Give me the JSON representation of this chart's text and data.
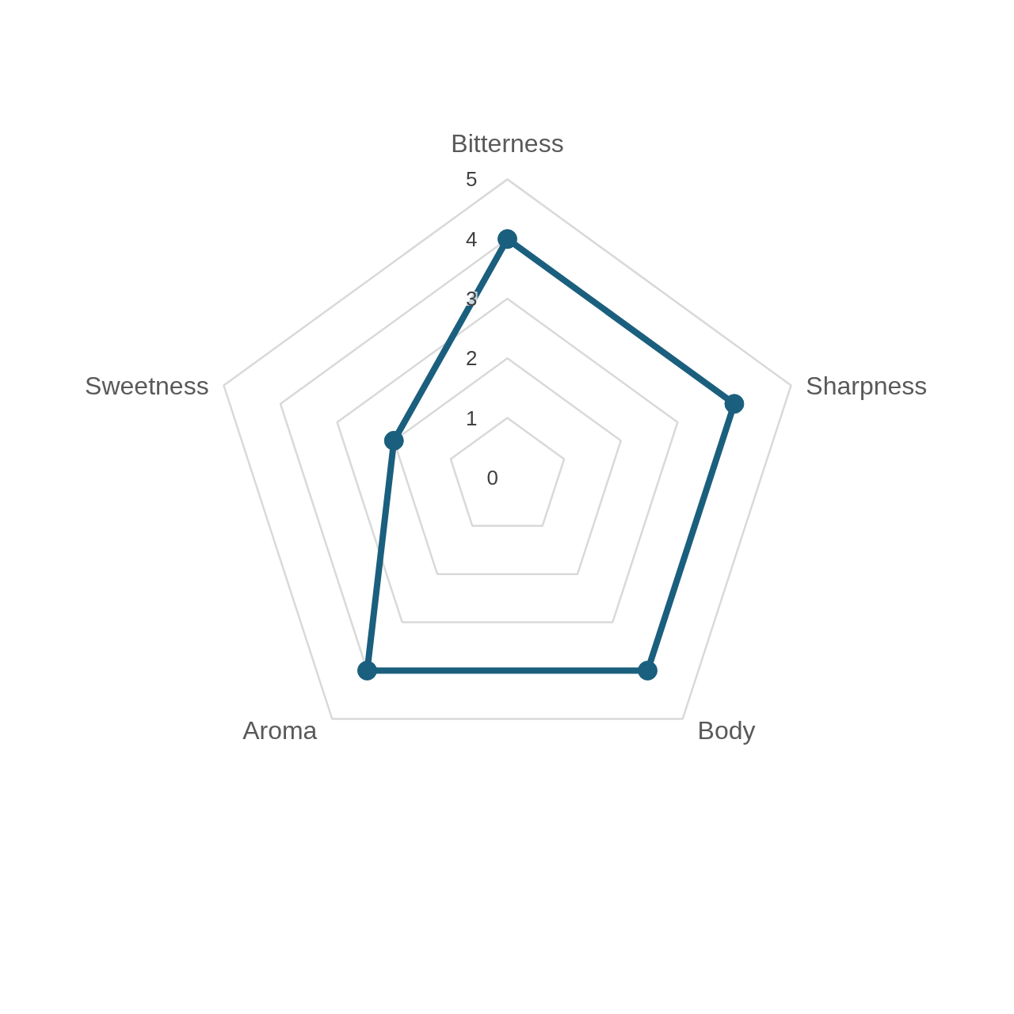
{
  "chart_data": {
    "type": "radar",
    "categories": [
      "Bitterness",
      "Sharpness",
      "Body",
      "Aroma",
      "Sweetness"
    ],
    "series": [
      {
        "color": "#1b5f7e",
        "values": [
          4,
          4,
          4,
          4,
          2
        ]
      }
    ],
    "ylim": [
      0,
      5
    ],
    "yticks": [
      0,
      1,
      2,
      3,
      4,
      5
    ],
    "grid": true,
    "marker": "circle",
    "line_style": "solid"
  }
}
